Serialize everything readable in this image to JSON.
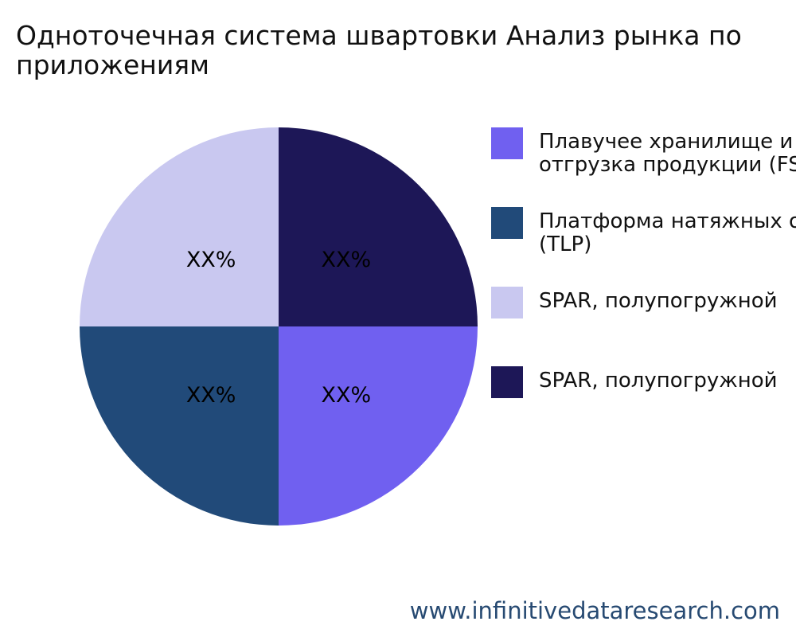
{
  "chart_data": {
    "type": "pie",
    "title": "Одноточечная система швартовки Анализ рынка по\nприложениям",
    "slices": [
      {
        "label": "Плавучее хранилище и\nотгрузка продукции (FSO)",
        "value": 25,
        "data_label": "XX%",
        "color": "#7060f0"
      },
      {
        "label": "Платформа натяжных опор\n(TLP)",
        "value": 25,
        "data_label": "XX%",
        "color": "#214a79"
      },
      {
        "label": "SPAR, полупогружной",
        "value": 25,
        "data_label": "XX%",
        "color": "#c9c8f0"
      },
      {
        "label": "SPAR, полупогружной",
        "value": 25,
        "data_label": "XX%",
        "color": "#1d1757"
      }
    ],
    "legend_position": "right"
  },
  "footer": {
    "watermark": "www.infinitivedataresearch.com"
  }
}
